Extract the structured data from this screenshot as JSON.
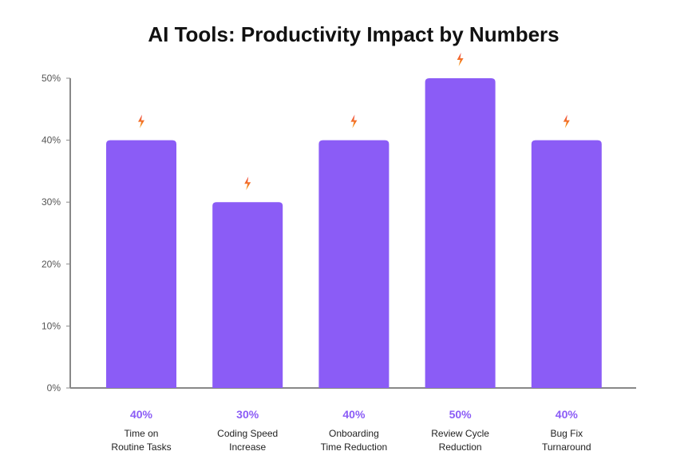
{
  "chart_data": {
    "type": "bar",
    "title": "AI Tools: Productivity Impact by Numbers",
    "xlabel": "",
    "ylabel": "",
    "ylim": [
      0,
      50
    ],
    "yticks": [
      "0%",
      "10%",
      "20%",
      "30%",
      "40%",
      "50%"
    ],
    "ytick_values": [
      0,
      10,
      20,
      30,
      40,
      50
    ],
    "categories": [
      [
        "Time on",
        "Routine Tasks"
      ],
      [
        "Coding Speed",
        "Increase"
      ],
      [
        "Onboarding",
        "Time Reduction"
      ],
      [
        "Review Cycle",
        "Reduction"
      ],
      [
        "Bug Fix",
        "Turnaround"
      ]
    ],
    "values": [
      40,
      30,
      40,
      50,
      40
    ],
    "value_labels": [
      "40%",
      "30%",
      "40%",
      "50%",
      "40%"
    ],
    "grid": false,
    "bar_marker_icon": "lightning-bolt-icon",
    "colors": {
      "bar": "#8b5cf6",
      "value_label": "#8b5cf6",
      "marker_top": "#ef4444",
      "marker_bottom": "#f59e0b",
      "axis": "#888888"
    }
  }
}
